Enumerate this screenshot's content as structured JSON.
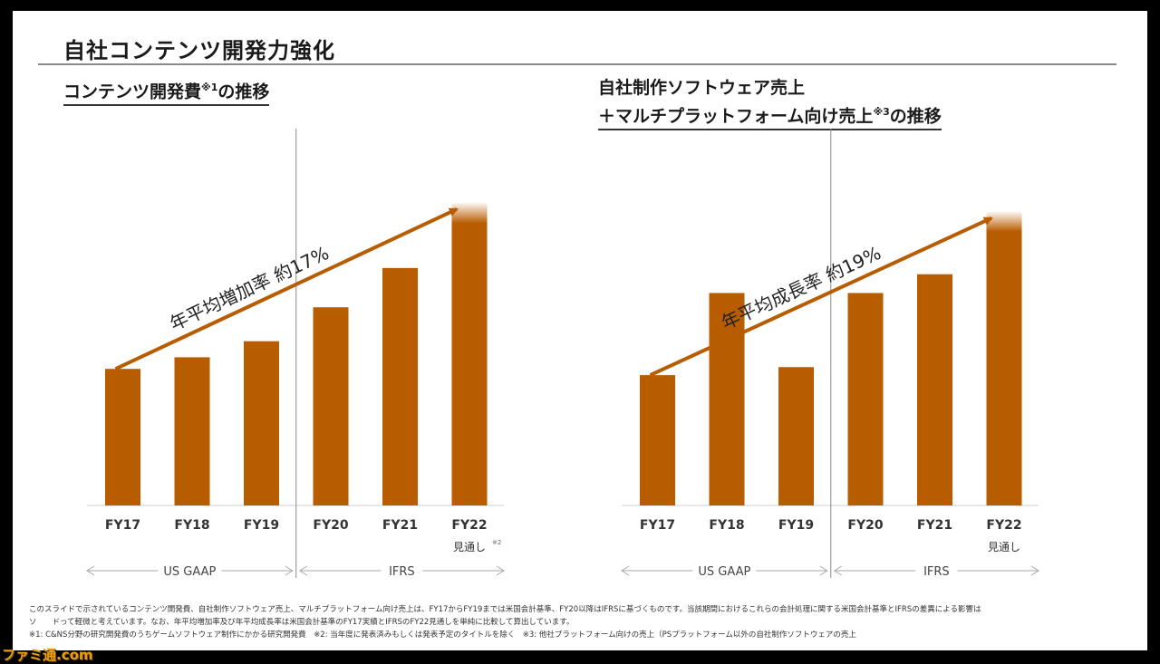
{
  "slide": {
    "title": "自社コンテンツ開発力強化",
    "left_subtitle": {
      "text": "コンテンツ開発費",
      "note_mark": "※1",
      "suffix": "の推移"
    },
    "right_subtitle": {
      "line1": "自社制作ソフトウェア売上",
      "line2_text": "＋マルチプラットフォーム向け売上",
      "line2_note_mark": "※3",
      "line2_suffix": "の推移"
    },
    "footnotes": [
      "このスライドで示されているコンテンツ開発費、自社制作ソフトウェア売上、マルチプラットフォーム向け売上は、FY17からFY19までは米国会計基準、FY20以降はIFRSに基づくものです。当該期間におけるこれらの会計処理に関する米国会計基準とIFRSの差異による影響は",
      "ソ　　ドって軽微と考えています。なお、年平均増加率及び年平均成長率は米国会計基準のFY17実績とIFRSのFY22見通しを単純に比較して算出しています。",
      "※1: C&NS分野の研究開発費のうちゲームソフトウェア制作にかかる研究開発費　※2: 当年度に発表済みもしくは発表予定のタイトルを除く　※3: 他社プラットフォーム向けの売上（PSプラットフォーム以外の自社制作ソフトウェアの売上"
    ]
  },
  "watermark": "ファミ通.com",
  "chart_data": [
    {
      "type": "bar",
      "categories": [
        "FY17",
        "FY18",
        "FY19",
        "FY20",
        "FY21",
        "FY22"
      ],
      "category_sublabels": [
        "",
        "",
        "",
        "",
        "",
        "見通し"
      ],
      "category_sublabel_note": "※2",
      "values": [
        153,
        166,
        184,
        222,
        266,
        340
      ],
      "ylim": [
        0,
        345
      ],
      "y_axis_values_shown": false,
      "color": "#b85c00",
      "last_bar_gradient_top": true,
      "trend_annotation": "年平均増加率 約17%",
      "divider_after_index": 2,
      "accounting_regions": [
        {
          "label": "US GAAP",
          "from_index": 0,
          "to_index": 2
        },
        {
          "label": "IFRS",
          "from_index": 3,
          "to_index": 5
        }
      ]
    },
    {
      "type": "bar",
      "categories": [
        "FY17",
        "FY18",
        "FY19",
        "FY20",
        "FY21",
        "FY22"
      ],
      "category_sublabels": [
        "",
        "",
        "",
        "",
        "",
        "見通し"
      ],
      "values": [
        146,
        238,
        155,
        238,
        259,
        330
      ],
      "ylim": [
        0,
        345
      ],
      "y_axis_values_shown": false,
      "color": "#b85c00",
      "last_bar_gradient_top": true,
      "trend_annotation": "年平均成長率 約19%",
      "divider_after_index": 2,
      "accounting_regions": [
        {
          "label": "US GAAP",
          "from_index": 0,
          "to_index": 2
        },
        {
          "label": "IFRS",
          "from_index": 3,
          "to_index": 5
        }
      ]
    }
  ]
}
